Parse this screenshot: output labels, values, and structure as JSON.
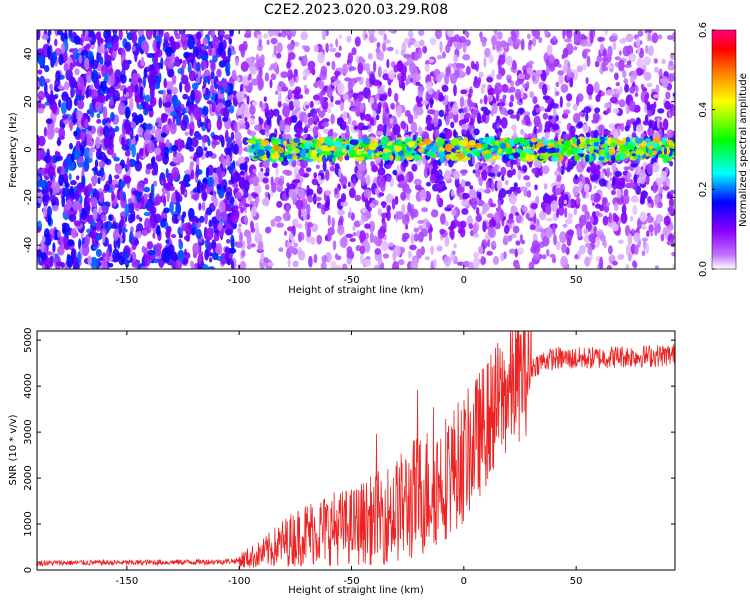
{
  "title": "C2E2.2023.020.03.29.R08",
  "chart_data": [
    {
      "type": "heatmap",
      "xlabel": "Height of straight line (km)",
      "ylabel": "Frequency (Hz)",
      "xlim": [
        -190,
        94
      ],
      "ylim": [
        -50,
        50
      ],
      "x_ticks": [
        -150,
        -100,
        -50,
        0,
        50
      ],
      "y_ticks": [
        -40,
        -20,
        0,
        20,
        40
      ],
      "grid": false,
      "colorbar": {
        "label": "Normalized spectral amplitude",
        "range": [
          0.0,
          0.6
        ],
        "ticks": [
          0.0,
          0.2,
          0.4,
          0.6
        ],
        "colors": [
          "#ffffff",
          "#8a00ff",
          "#0000ff",
          "#00ffff",
          "#00ff00",
          "#ffff00",
          "#ff8000",
          "#ff0000",
          "#ff0080"
        ]
      },
      "regions": [
        {
          "x_range": [
            -190,
            -102
          ],
          "description_level": 0.12,
          "freq_span": [
            -50,
            50
          ]
        },
        {
          "x_range": [
            -102,
            94
          ],
          "description_level": 0.1,
          "freq_span": [
            -50,
            50
          ]
        },
        {
          "x_range": [
            -95,
            94
          ],
          "description_level": 0.3,
          "freq_span": [
            -4,
            4
          ]
        }
      ]
    },
    {
      "type": "line",
      "xlabel": "Height of straight line (km)",
      "ylabel": "SNR (10 * v/v)",
      "xlim": [
        -190,
        94
      ],
      "ylim": [
        0,
        5200
      ],
      "x_ticks": [
        -150,
        -100,
        -50,
        0,
        50
      ],
      "y_ticks": [
        0,
        1000,
        2000,
        3000,
        4000,
        5000
      ],
      "grid": false,
      "series": [
        {
          "color": "#ee2222",
          "x": [
            -190,
            -170,
            -150,
            -130,
            -110,
            -100,
            -90,
            -80,
            -70,
            -60,
            -50,
            -40,
            -30,
            -20,
            -15,
            -10,
            -5,
            0,
            5,
            10,
            15,
            20,
            25,
            30,
            35,
            40,
            50,
            60,
            70,
            80,
            94
          ],
          "y": [
            150,
            160,
            160,
            170,
            180,
            200,
            350,
            600,
            800,
            900,
            950,
            1100,
            1300,
            1600,
            1800,
            1950,
            2200,
            2400,
            2800,
            3200,
            3600,
            3900,
            4200,
            4400,
            4550,
            4600,
            4600,
            4620,
            4650,
            4650,
            4680
          ]
        }
      ]
    }
  ]
}
